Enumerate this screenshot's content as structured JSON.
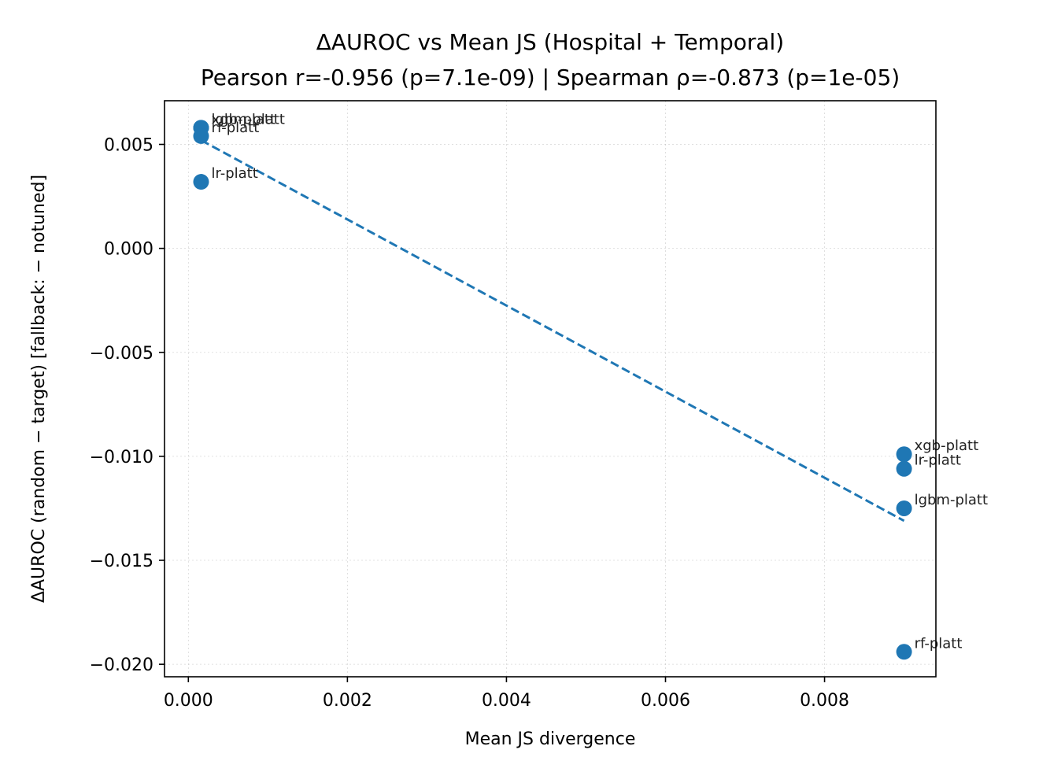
{
  "chart_data": {
    "type": "scatter",
    "title_line1": "ΔAUROC vs Mean JS (Hospital + Temporal)",
    "title_line2": "Pearson r=-0.956 (p=7.1e-09) | Spearman ρ=-0.873 (p=1e-05)",
    "xlabel": "Mean JS divergence",
    "ylabel": "ΔAUROC (random − target)  [fallback: − notuned]",
    "xlim": [
      -0.0003,
      0.0094
    ],
    "ylim": [
      -0.0206,
      0.0071
    ],
    "xticks": [
      0.0,
      0.002,
      0.004,
      0.006,
      0.008
    ],
    "xtick_labels": [
      "0.000",
      "0.002",
      "0.004",
      "0.006",
      "0.008"
    ],
    "yticks": [
      0.005,
      0.0,
      -0.005,
      -0.01,
      -0.015,
      -0.02
    ],
    "ytick_labels": [
      "0.005",
      "0.000",
      "−0.005",
      "−0.010",
      "−0.015",
      "−0.020"
    ],
    "grid": true,
    "point_color": "#1f77b4",
    "trend_color": "#1f77b4",
    "points": [
      {
        "x": 0.00016,
        "y": 0.0058,
        "label": "lgbm-platt"
      },
      {
        "x": 0.00016,
        "y": 0.0058,
        "label": "xgb-platt"
      },
      {
        "x": 0.00016,
        "y": 0.0054,
        "label": "rf-platt"
      },
      {
        "x": 0.00016,
        "y": 0.0032,
        "label": "lr-platt"
      },
      {
        "x": 0.009,
        "y": -0.0099,
        "label": "xgb-platt"
      },
      {
        "x": 0.009,
        "y": -0.0106,
        "label": "lr-platt"
      },
      {
        "x": 0.009,
        "y": -0.0125,
        "label": "lgbm-platt"
      },
      {
        "x": 0.009,
        "y": -0.0194,
        "label": "rf-platt"
      }
    ],
    "trend_line": {
      "x": [
        0.00016,
        0.009
      ],
      "y": [
        0.0052,
        -0.0131
      ]
    }
  }
}
